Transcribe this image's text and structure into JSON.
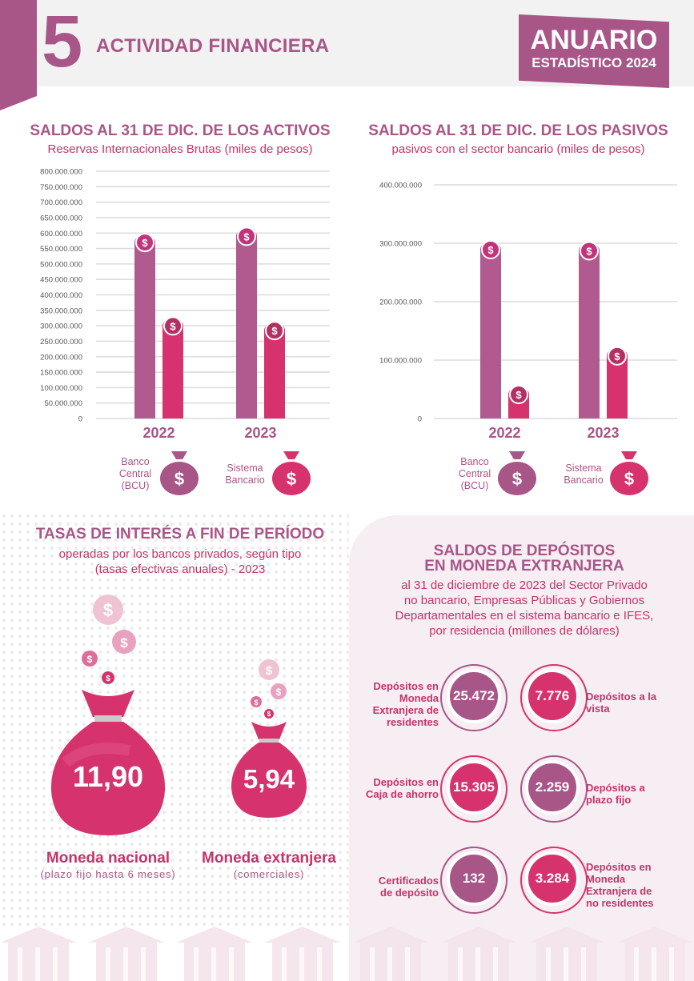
{
  "header": {
    "chapter_number": "5",
    "chapter_title": "ACTIVIDAD FINANCIERA",
    "anuario_line1": "ANUARIO",
    "anuario_line2": "ESTADÍSTICO 2024"
  },
  "activos": {
    "title": "SALDOS AL 31 DE DIC. DE LOS ACTIVOS",
    "subtitle": "Reservas Internacionales Brutas (miles de pesos)"
  },
  "pasivos": {
    "title": "SALDOS AL 31 DE DIC. DE LOS PASIVOS",
    "subtitle": "pasivos con el sector bancario (miles de pesos)"
  },
  "legend": {
    "bcu_label": "Banco Central (BCU)",
    "banking_label": "Sistema Bancario"
  },
  "chart_data": [
    {
      "type": "bar",
      "title": "SALDOS AL 31 DE DIC. DE LOS ACTIVOS",
      "subtitle": "Reservas Internacionales Brutas (miles de pesos)",
      "categories": [
        "2022",
        "2023"
      ],
      "series": [
        {
          "name": "Banco Central (BCU)",
          "values": [
            590000000,
            610000000
          ]
        },
        {
          "name": "Sistema Bancario",
          "values": [
            320000000,
            305000000
          ]
        }
      ],
      "ylim": [
        0,
        800000000
      ],
      "yticks": [
        "0",
        "50.000.000",
        "100.000.000",
        "150.000.000",
        "200.000.000",
        "250.000.000",
        "300.000.000",
        "350.000.000",
        "400.000.000",
        "450.000.000",
        "500.000.000",
        "550.000.000",
        "600.000.000",
        "650.000.000",
        "700.000.000",
        "750.000.000",
        "800.000.000"
      ],
      "yvalues": [
        0,
        50000000,
        100000000,
        150000000,
        200000000,
        250000000,
        300000000,
        350000000,
        400000000,
        450000000,
        500000000,
        550000000,
        600000000,
        650000000,
        700000000,
        750000000,
        800000000
      ],
      "grid": true,
      "colors": [
        "#b05a90",
        "#d6336e"
      ]
    },
    {
      "type": "bar",
      "title": "SALDOS AL 31 DE DIC. DE LOS PASIVOS",
      "subtitle": "pasivos con el sector bancario (miles de pesos)",
      "categories": [
        "2022",
        "2023"
      ],
      "series": [
        {
          "name": "Banco Central (BCU)",
          "values": [
            300000000,
            298000000
          ]
        },
        {
          "name": "Sistema Bancario",
          "values": [
            52000000,
            118000000
          ]
        }
      ],
      "ylim": [
        0,
        400000000
      ],
      "yticks": [
        "0",
        "100.000.000",
        "200.000.000",
        "300.000.000",
        "400.000.000"
      ],
      "yvalues": [
        0,
        100000000,
        200000000,
        300000000,
        400000000
      ],
      "grid": true,
      "colors": [
        "#b05a90",
        "#d6336e"
      ]
    }
  ],
  "tasas": {
    "title": "TASAS DE INTERÉS A FIN DE PERÍODO",
    "subtitle_line1": "operadas por los bancos privados, según tipo",
    "subtitle_line2": "(tasas efectivas anuales) - 2023",
    "nacional_value": "11,90",
    "nacional_label": "Moneda nacional",
    "nacional_sub": "(plazo fijo hasta 6 meses)",
    "extranjera_value": "5,94",
    "extranjera_label": "Moneda extranjera",
    "extranjera_sub": "(comerciales)"
  },
  "depositos": {
    "title_line1": "SALDOS DE DEPÓSITOS",
    "title_line2": "EN MONEDA EXTRANJERA",
    "sub_line1": "al 31 de diciembre de 2023 del Sector Privado",
    "sub_line2": "no bancario, Empresas Públicas y Gobiernos",
    "sub_line3": "Departamentales en el sistema bancario e IFES,",
    "sub_line4": "por residencia (millones de dólares)",
    "items": [
      {
        "label": "Depósitos en Moneda Extranjera de residentes",
        "value": "25.472"
      },
      {
        "label": "Depósitos a la vista",
        "value": "7.776"
      },
      {
        "label": "Depósitos en Caja de ahorro",
        "value": "15.305"
      },
      {
        "label": "Depósitos a plazo fijo",
        "value": "2.259"
      },
      {
        "label": "Certificados de depósito",
        "value": "132"
      },
      {
        "label": "Depósitos en Moneda Extranjera de no residentes",
        "value": "3.284"
      }
    ]
  },
  "colors": {
    "mauve": "#a85687",
    "pink": "#d6336e",
    "light_pink": "#f7eef3"
  }
}
